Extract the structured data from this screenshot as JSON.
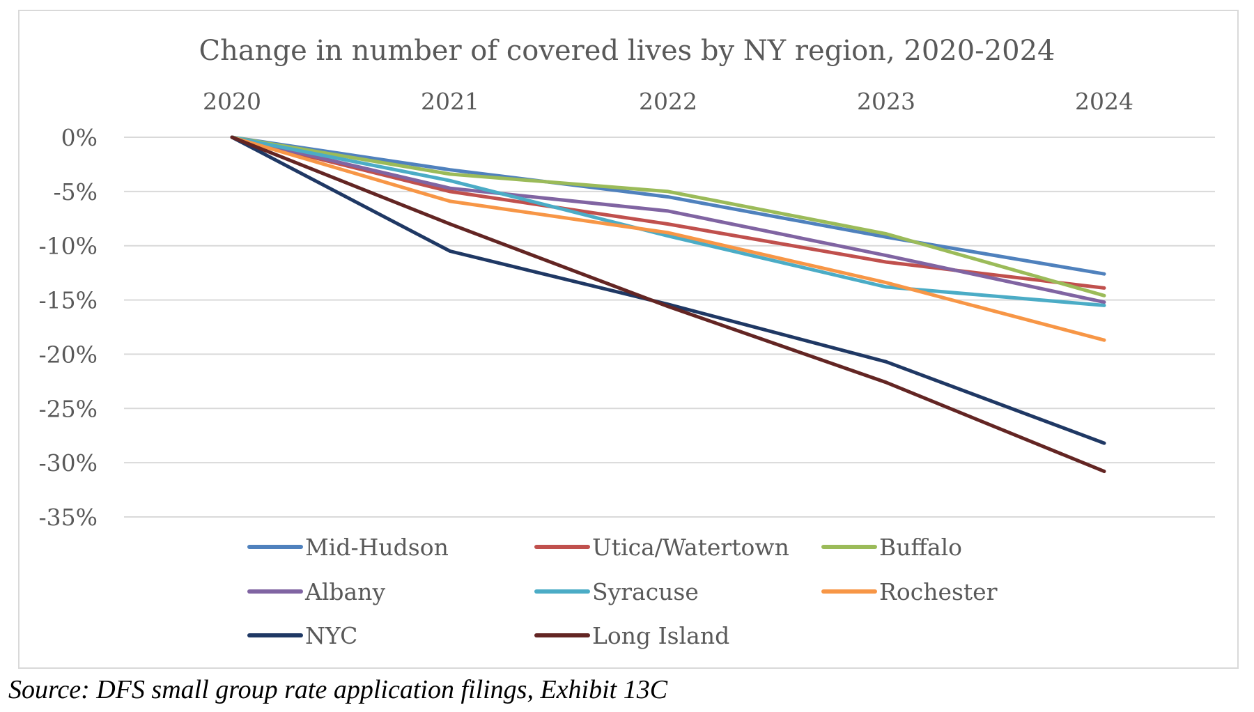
{
  "chart_data": {
    "type": "line",
    "title": "Change in number of covered lives by NY region, 2020-2024",
    "categories": [
      "2020",
      "2021",
      "2022",
      "2023",
      "2024"
    ],
    "ylim": [
      -35,
      0
    ],
    "ytick_values": [
      0,
      -5,
      -10,
      -15,
      -20,
      -25,
      -30,
      -35
    ],
    "ytick_labels": [
      "0%",
      "-5%",
      "-10%",
      "-15%",
      "-20%",
      "-25%",
      "-30%",
      "-35%"
    ],
    "y_unit": "%",
    "grid": true,
    "x_axis_position": "top",
    "legend_position": "bottom",
    "series": [
      {
        "name": "Mid-Hudson",
        "color": "#4f81bd",
        "values": [
          0,
          -3.0,
          -5.5,
          -9.2,
          -12.6
        ]
      },
      {
        "name": "Utica/Watertown",
        "color": "#c0504d",
        "values": [
          0,
          -5.0,
          -8.0,
          -11.5,
          -13.9
        ]
      },
      {
        "name": "Buffalo",
        "color": "#9bbb59",
        "values": [
          0,
          -3.4,
          -5.0,
          -8.9,
          -14.6
        ]
      },
      {
        "name": "Albany",
        "color": "#8064a2",
        "values": [
          0,
          -4.7,
          -6.8,
          -10.9,
          -15.2
        ]
      },
      {
        "name": "Syracuse",
        "color": "#4bacc6",
        "values": [
          0,
          -4.0,
          -9.1,
          -13.8,
          -15.5
        ]
      },
      {
        "name": "Rochester",
        "color": "#f79646",
        "values": [
          0,
          -5.9,
          -8.8,
          -13.4,
          -18.7
        ]
      },
      {
        "name": "NYC",
        "color": "#1f3864",
        "values": [
          0,
          -10.5,
          -15.4,
          -20.7,
          -28.2
        ]
      },
      {
        "name": "Long Island",
        "color": "#632523",
        "values": [
          0,
          -8.0,
          -15.6,
          -22.6,
          -30.8
        ]
      }
    ]
  },
  "source_note": "Source: DFS small group rate application filings, Exhibit 13C"
}
